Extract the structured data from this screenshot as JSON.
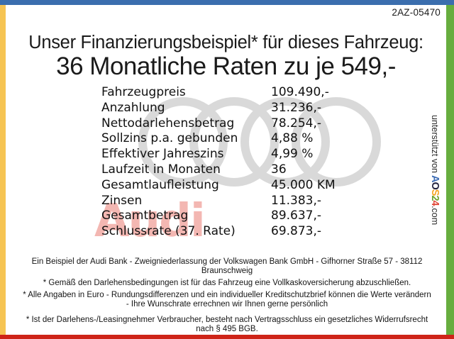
{
  "page": {
    "ref_code": "2AZ-05470",
    "title_line1": "Unser Finanzierungsbeispiel* für dieses Fahrzeug:",
    "title_line2": "36 Monatliche Raten zu je 549,-"
  },
  "finance_table": {
    "rows": [
      {
        "label": "Fahrzeugpreis",
        "value": "109.490,-"
      },
      {
        "label": "Anzahlung",
        "value": "31.236,-"
      },
      {
        "label": "Nettodarlehensbetrag",
        "value": "78.254,-"
      },
      {
        "label": "Sollzins p.a. gebunden",
        "value": "4,88 %"
      },
      {
        "label": "Effektiver Jahreszins",
        "value": "4,99 %"
      },
      {
        "label": "Laufzeit in Monaten",
        "value": "36"
      },
      {
        "label": "Gesamtlaufleistung",
        "value": "45.000 KM"
      },
      {
        "label": "Zinsen",
        "value": "11.383,-"
      },
      {
        "label": "Gesamtbetrag",
        "value": "89.637,-"
      },
      {
        "label": "Schlussrate (37. Rate)",
        "value": "69.873,-"
      }
    ]
  },
  "watermark": {
    "audi_text": "Audi",
    "rings_color": "#d9d9d9",
    "audi_text_color": "#f3b7b2"
  },
  "footer": {
    "lines": [
      "Ein Beispiel der Audi Bank -  Zweigniederlassung der Volkswagen Bank GmbH - Gifhorner Straße 57 - 38112 Braunschweig",
      "* Gemäß den Darlehensbedingungen ist für das Fahrzeug eine Vollkaskoversicherung abzuschließen.",
      "* Alle Angaben in Euro - Rundungsdifferenzen und ein individueller Kreditschutzbrief können die Werte verändern - Ihre Wunschrate errechnen wir Ihnen gerne persönlich",
      "* Ist der Darlehens-/Leasingnehmer Verbraucher, besteht nach Vertragsschluss ein gesetzliches Widerrufsrecht nach § 495 BGB."
    ]
  },
  "side_credit": {
    "prefix": "unterstützt von ",
    "logo_letters": [
      {
        "char": "A",
        "color": "#3d6cb4"
      },
      {
        "char": "O",
        "color": "#23233f"
      },
      {
        "char": "S",
        "color": "#f5a623"
      },
      {
        "char": "2",
        "color": "#6fa32c"
      },
      {
        "char": "4",
        "color": "#e04637"
      }
    ],
    "suffix": ".com"
  },
  "colors": {
    "top_bar": "#3b6eae",
    "left_bar": "#f6c453",
    "right_bar": "#67ad3e",
    "bottom_bar": "#ce2418"
  }
}
